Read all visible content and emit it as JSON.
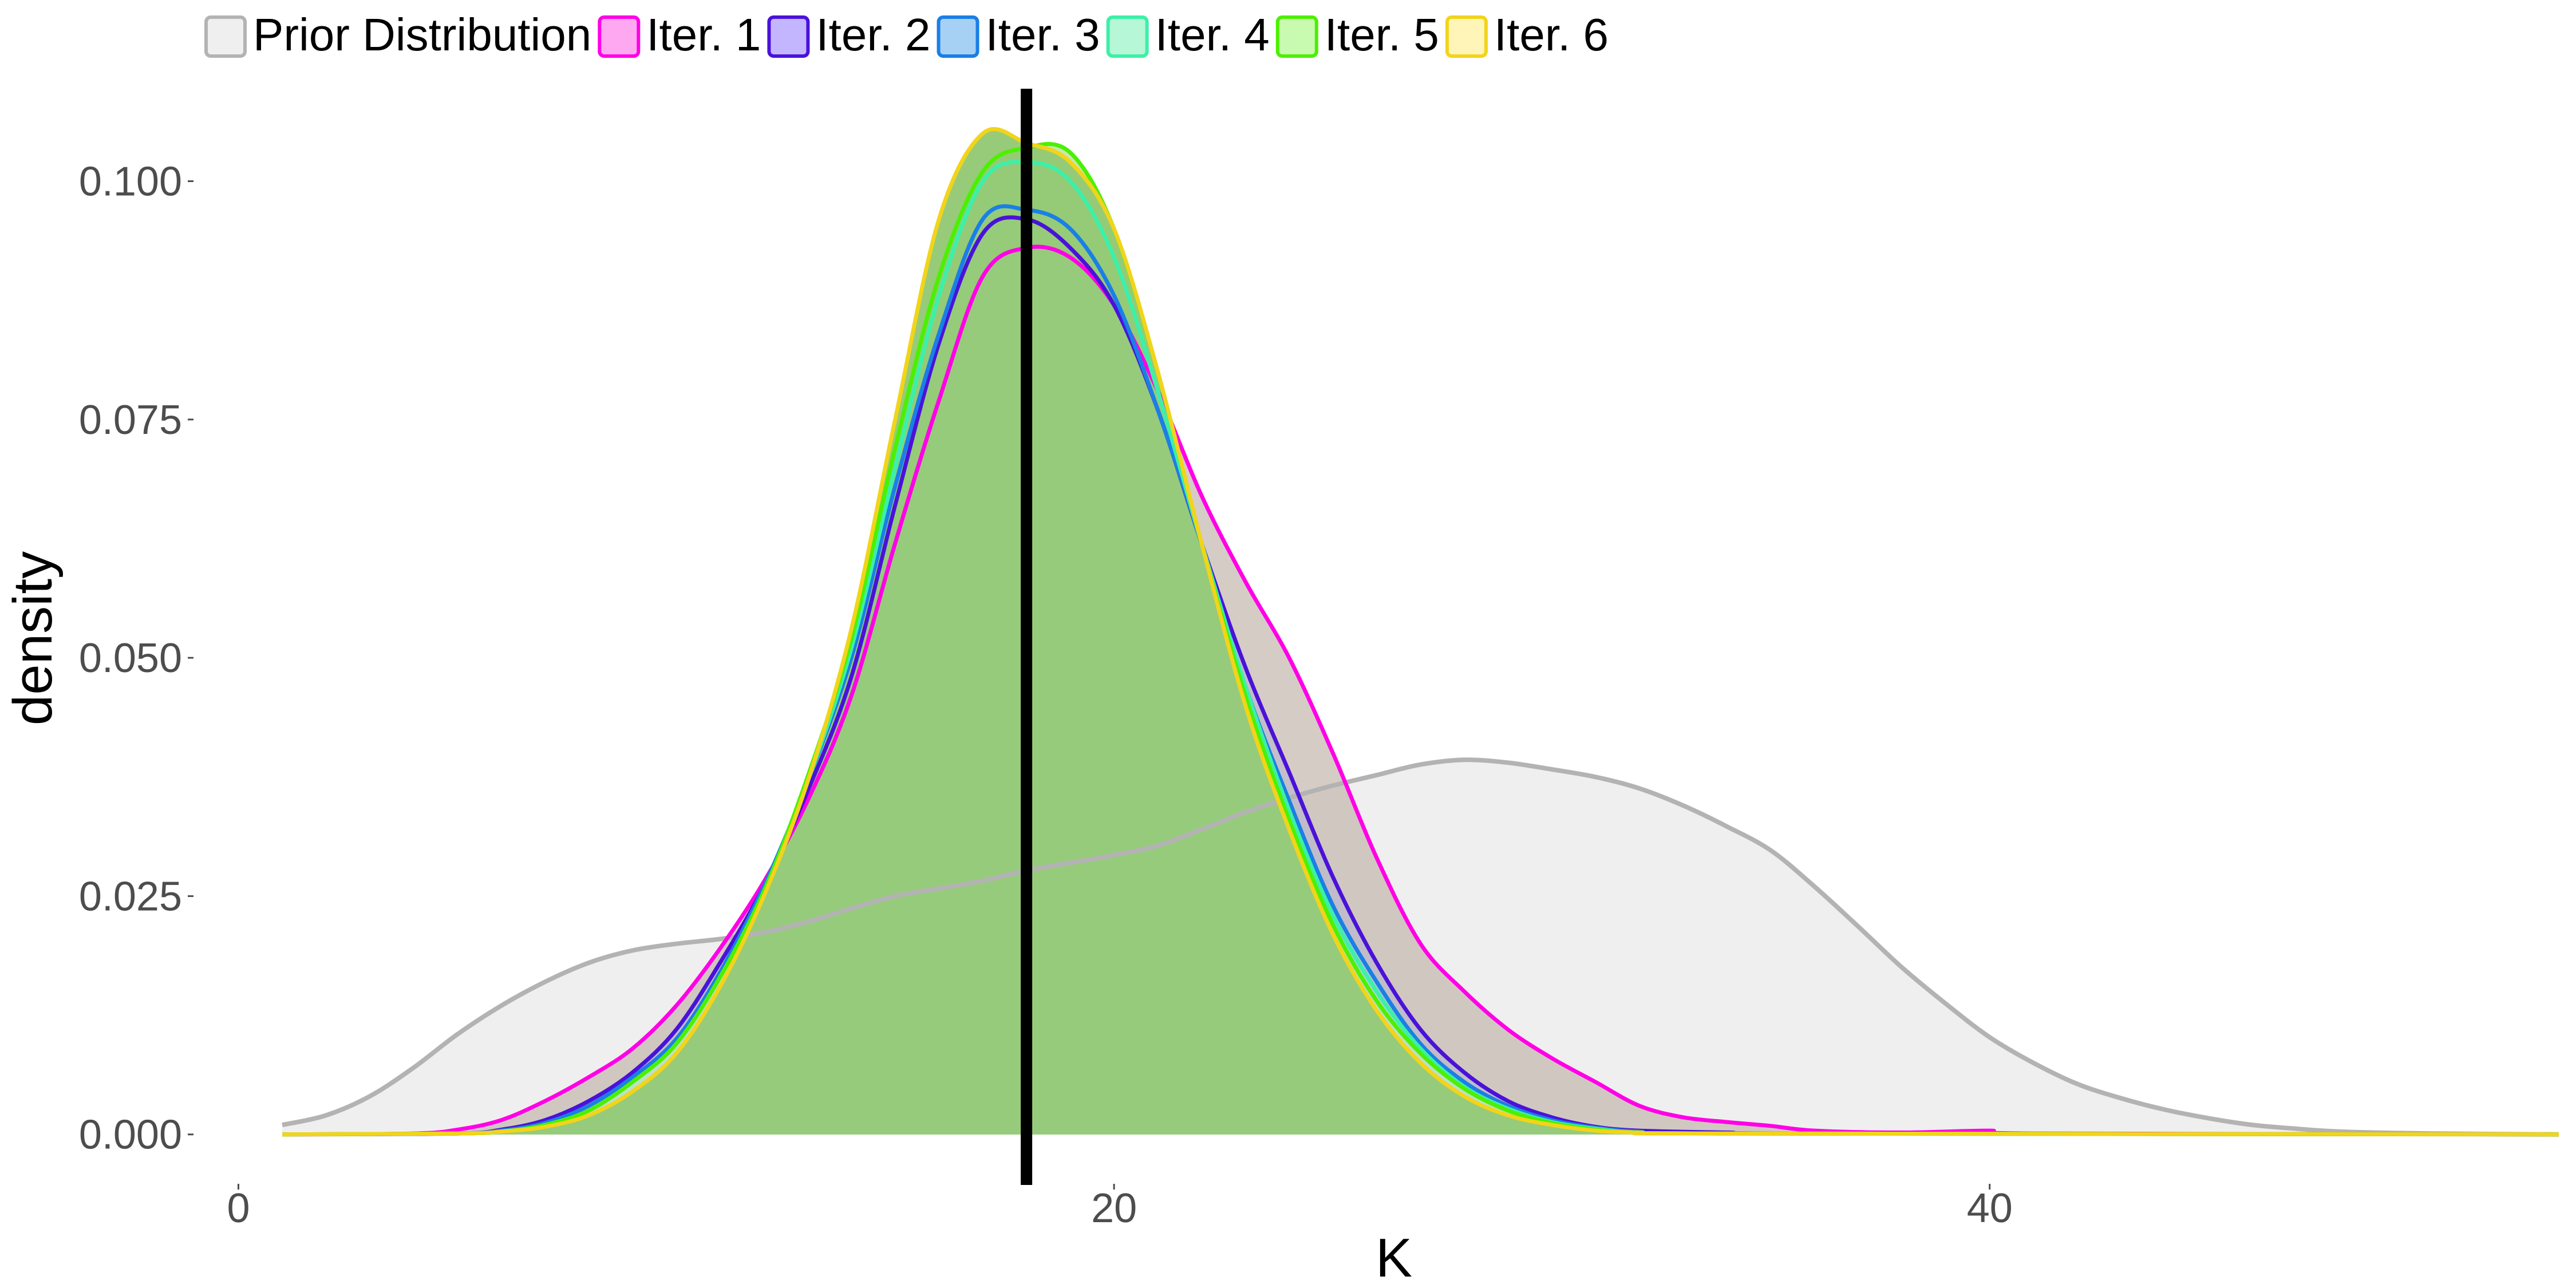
{
  "chart_data": {
    "type": "area",
    "title": "",
    "xlabel": "K",
    "ylabel": "density",
    "xlim": [
      -1,
      53
    ],
    "ylim": [
      -0.005,
      0.11
    ],
    "x_ticks": [
      {
        "value": 0,
        "label": "0"
      },
      {
        "value": 20,
        "label": "20"
      },
      {
        "value": 40,
        "label": "40"
      }
    ],
    "y_ticks": [
      {
        "value": 0.0,
        "label": "0.000"
      },
      {
        "value": 0.025,
        "label": "0.025"
      },
      {
        "value": 0.05,
        "label": "0.050"
      },
      {
        "value": 0.075,
        "label": "0.075"
      },
      {
        "value": 0.1,
        "label": "0.100"
      }
    ],
    "grid": false,
    "legend_position": "top",
    "reference_line": {
      "x": 18,
      "color": "#000000"
    },
    "series": [
      {
        "name": "Prior Distribution",
        "stroke": "#b3b3b3",
        "fill": "#efefef",
        "fill_opacity": 1,
        "points": [
          [
            1,
            0.001
          ],
          [
            2,
            0.002
          ],
          [
            3,
            0.004
          ],
          [
            4,
            0.007
          ],
          [
            5,
            0.0105
          ],
          [
            6,
            0.0135
          ],
          [
            7,
            0.016
          ],
          [
            8,
            0.018
          ],
          [
            9,
            0.0193
          ],
          [
            10,
            0.02
          ],
          [
            11,
            0.0205
          ],
          [
            12,
            0.0212
          ],
          [
            13,
            0.0223
          ],
          [
            14,
            0.0237
          ],
          [
            15,
            0.025
          ],
          [
            16,
            0.0258
          ],
          [
            17,
            0.0266
          ],
          [
            18,
            0.0277
          ],
          [
            19,
            0.0285
          ],
          [
            20,
            0.0293
          ],
          [
            21,
            0.0303
          ],
          [
            22,
            0.032
          ],
          [
            23,
            0.0338
          ],
          [
            24,
            0.0353
          ],
          [
            25,
            0.0366
          ],
          [
            26,
            0.0377
          ],
          [
            27,
            0.0388
          ],
          [
            28,
            0.0393
          ],
          [
            29,
            0.039
          ],
          [
            30,
            0.0383
          ],
          [
            31,
            0.0375
          ],
          [
            32,
            0.0363
          ],
          [
            33,
            0.0345
          ],
          [
            34,
            0.0323
          ],
          [
            35,
            0.0298
          ],
          [
            36,
            0.026
          ],
          [
            37,
            0.0218
          ],
          [
            38,
            0.0175
          ],
          [
            39,
            0.0137
          ],
          [
            40,
            0.0102
          ],
          [
            41,
            0.0075
          ],
          [
            42,
            0.0053
          ],
          [
            43,
            0.0038
          ],
          [
            44,
            0.0026
          ],
          [
            45,
            0.0017
          ],
          [
            46,
            0.001
          ],
          [
            47,
            0.0006
          ],
          [
            48,
            0.0003
          ],
          [
            50,
            0.0001
          ],
          [
            53,
            0.0
          ]
        ]
      },
      {
        "name": "Iter. 1",
        "stroke": "#ff00e6",
        "fill": "#ffa8f2",
        "fill_opacity": 0.85,
        "points": [
          [
            1,
            0.0
          ],
          [
            4,
            0.0001
          ],
          [
            5,
            0.0005
          ],
          [
            6,
            0.0015
          ],
          [
            7,
            0.0035
          ],
          [
            8,
            0.006
          ],
          [
            9,
            0.009
          ],
          [
            10,
            0.0135
          ],
          [
            11,
            0.0195
          ],
          [
            12,
            0.0265
          ],
          [
            13,
            0.035
          ],
          [
            14,
            0.046
          ],
          [
            15,
            0.062
          ],
          [
            16,
            0.077
          ],
          [
            17,
            0.09
          ],
          [
            18,
            0.093
          ],
          [
            19,
            0.092
          ],
          [
            20,
            0.087
          ],
          [
            21,
            0.078
          ],
          [
            22,
            0.067
          ],
          [
            23,
            0.058
          ],
          [
            24,
            0.05
          ],
          [
            25,
            0.04
          ],
          [
            26,
            0.029
          ],
          [
            27,
            0.02
          ],
          [
            28,
            0.015
          ],
          [
            29,
            0.011
          ],
          [
            30,
            0.008
          ],
          [
            31,
            0.0055
          ],
          [
            32,
            0.003
          ],
          [
            33,
            0.0018
          ],
          [
            34,
            0.0013
          ],
          [
            35,
            0.0009
          ],
          [
            36,
            0.0004
          ],
          [
            38,
            0.0002
          ],
          [
            40,
            0.0004
          ],
          [
            41,
            0.0001
          ],
          [
            53,
            0.0
          ]
        ]
      },
      {
        "name": "Iter. 2",
        "stroke": "#4a12d9",
        "fill": "#c4b5ff",
        "fill_opacity": 0.85,
        "points": [
          [
            1,
            0.0
          ],
          [
            5,
            0.0001
          ],
          [
            6,
            0.0005
          ],
          [
            7,
            0.0015
          ],
          [
            8,
            0.0035
          ],
          [
            9,
            0.0065
          ],
          [
            10,
            0.011
          ],
          [
            11,
            0.018
          ],
          [
            12,
            0.026
          ],
          [
            13,
            0.036
          ],
          [
            14,
            0.048
          ],
          [
            15,
            0.066
          ],
          [
            16,
            0.083
          ],
          [
            17,
            0.0945
          ],
          [
            18,
            0.096
          ],
          [
            19,
            0.093
          ],
          [
            20,
            0.087
          ],
          [
            21,
            0.076
          ],
          [
            22,
            0.062
          ],
          [
            23,
            0.049
          ],
          [
            24,
            0.038
          ],
          [
            25,
            0.027
          ],
          [
            26,
            0.018
          ],
          [
            27,
            0.011
          ],
          [
            28,
            0.0065
          ],
          [
            29,
            0.0035
          ],
          [
            30,
            0.0018
          ],
          [
            31,
            0.0008
          ],
          [
            32,
            0.0004
          ],
          [
            34,
            0.0002
          ],
          [
            36,
            0.0001
          ],
          [
            53,
            0.0
          ]
        ]
      },
      {
        "name": "Iter. 3",
        "stroke": "#1a7fe6",
        "fill": "#a7d0f5",
        "fill_opacity": 0.85,
        "points": [
          [
            1,
            0.0
          ],
          [
            5,
            0.0001
          ],
          [
            6,
            0.0004
          ],
          [
            7,
            0.0012
          ],
          [
            8,
            0.003
          ],
          [
            9,
            0.006
          ],
          [
            10,
            0.01
          ],
          [
            11,
            0.017
          ],
          [
            12,
            0.026
          ],
          [
            13,
            0.037
          ],
          [
            14,
            0.05
          ],
          [
            15,
            0.068
          ],
          [
            16,
            0.084
          ],
          [
            17,
            0.096
          ],
          [
            18,
            0.097
          ],
          [
            19,
            0.095
          ],
          [
            20,
            0.088
          ],
          [
            21,
            0.076
          ],
          [
            22,
            0.062
          ],
          [
            23,
            0.047
          ],
          [
            24,
            0.035
          ],
          [
            25,
            0.024
          ],
          [
            26,
            0.016
          ],
          [
            27,
            0.0095
          ],
          [
            28,
            0.0055
          ],
          [
            29,
            0.003
          ],
          [
            30,
            0.0015
          ],
          [
            31,
            0.0007
          ],
          [
            32,
            0.0003
          ],
          [
            34,
            0.0001
          ],
          [
            53,
            0.0
          ]
        ]
      },
      {
        "name": "Iter. 4",
        "stroke": "#3cf0a8",
        "fill": "#b5f7d7",
        "fill_opacity": 0.85,
        "points": [
          [
            1,
            0.0
          ],
          [
            5,
            0.0001
          ],
          [
            6,
            0.0003
          ],
          [
            7,
            0.001
          ],
          [
            8,
            0.0025
          ],
          [
            9,
            0.0055
          ],
          [
            10,
            0.0095
          ],
          [
            11,
            0.0165
          ],
          [
            12,
            0.0255
          ],
          [
            13,
            0.037
          ],
          [
            14,
            0.051
          ],
          [
            15,
            0.07
          ],
          [
            16,
            0.088
          ],
          [
            17,
            0.1
          ],
          [
            18,
            0.102
          ],
          [
            19,
            0.1
          ],
          [
            20,
            0.092
          ],
          [
            21,
            0.078
          ],
          [
            22,
            0.062
          ],
          [
            23,
            0.047
          ],
          [
            24,
            0.034
          ],
          [
            25,
            0.023
          ],
          [
            26,
            0.015
          ],
          [
            27,
            0.009
          ],
          [
            28,
            0.005
          ],
          [
            29,
            0.0027
          ],
          [
            30,
            0.0013
          ],
          [
            31,
            0.0006
          ],
          [
            32,
            0.0002
          ],
          [
            34,
            0.0001
          ],
          [
            53,
            0.0
          ]
        ]
      },
      {
        "name": "Iter. 5",
        "stroke": "#4cf000",
        "fill": "#c8fbb0",
        "fill_opacity": 0.85,
        "points": [
          [
            1,
            0.0
          ],
          [
            5,
            0.0001
          ],
          [
            6,
            0.0003
          ],
          [
            7,
            0.001
          ],
          [
            8,
            0.0025
          ],
          [
            9,
            0.0055
          ],
          [
            10,
            0.0095
          ],
          [
            11,
            0.0165
          ],
          [
            12,
            0.0255
          ],
          [
            13,
            0.0375
          ],
          [
            14,
            0.052
          ],
          [
            15,
            0.072
          ],
          [
            16,
            0.09
          ],
          [
            17,
            0.101
          ],
          [
            18,
            0.1035
          ],
          [
            19,
            0.103
          ],
          [
            20,
            0.095
          ],
          [
            21,
            0.08
          ],
          [
            22,
            0.062
          ],
          [
            23,
            0.046
          ],
          [
            24,
            0.033
          ],
          [
            25,
            0.022
          ],
          [
            26,
            0.014
          ],
          [
            27,
            0.0085
          ],
          [
            28,
            0.0048
          ],
          [
            29,
            0.0025
          ],
          [
            30,
            0.0012
          ],
          [
            31,
            0.0005
          ],
          [
            32,
            0.0002
          ],
          [
            34,
            0.0001
          ],
          [
            53,
            0.0
          ]
        ]
      },
      {
        "name": "Iter. 6",
        "stroke": "#f2d41a",
        "fill": "#fff5b8",
        "fill_opacity": 0.85,
        "points": [
          [
            1,
            0.0
          ],
          [
            5,
            0.0001
          ],
          [
            6,
            0.0003
          ],
          [
            7,
            0.0008
          ],
          [
            8,
            0.002
          ],
          [
            9,
            0.0045
          ],
          [
            10,
            0.0085
          ],
          [
            11,
            0.0155
          ],
          [
            12,
            0.025
          ],
          [
            13,
            0.037
          ],
          [
            14,
            0.053
          ],
          [
            15,
            0.075
          ],
          [
            16,
            0.096
          ],
          [
            17,
            0.105
          ],
          [
            18,
            0.104
          ],
          [
            19,
            0.102
          ],
          [
            20,
            0.095
          ],
          [
            21,
            0.08
          ],
          [
            22,
            0.062
          ],
          [
            23,
            0.045
          ],
          [
            24,
            0.032
          ],
          [
            25,
            0.021
          ],
          [
            26,
            0.013
          ],
          [
            27,
            0.0075
          ],
          [
            28,
            0.004
          ],
          [
            29,
            0.002
          ],
          [
            30,
            0.001
          ],
          [
            31,
            0.0004
          ],
          [
            32,
            0.0002
          ],
          [
            34,
            0.0001
          ],
          [
            53,
            0.0
          ]
        ]
      }
    ],
    "overlap_fill": "#8cc56e"
  }
}
